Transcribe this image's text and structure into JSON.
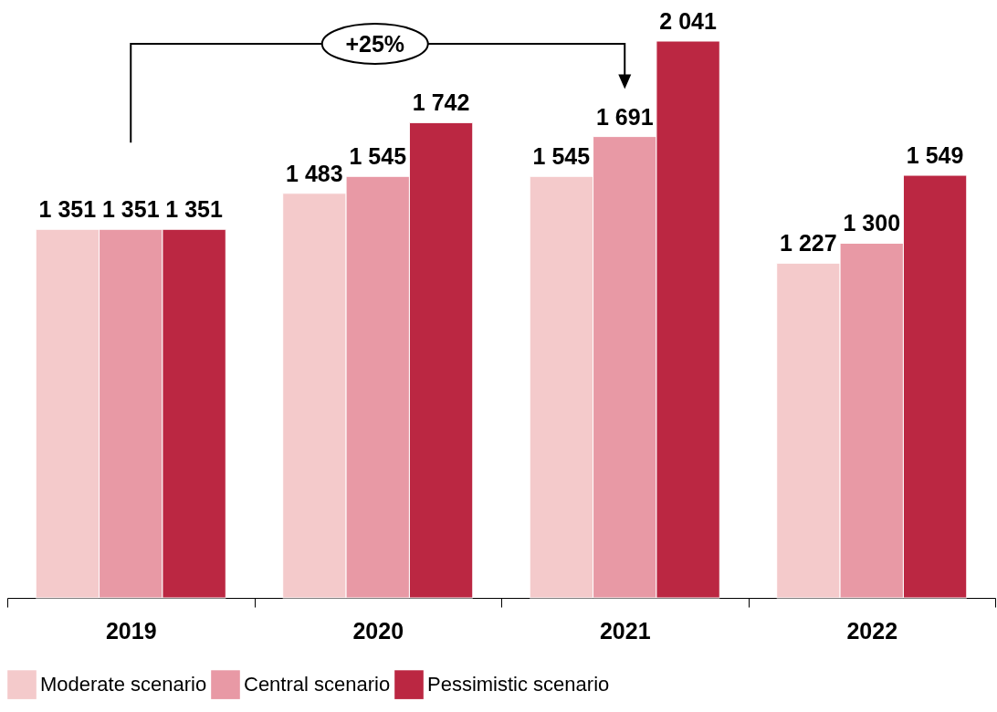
{
  "chart_data": {
    "type": "bar",
    "categories": [
      "2019",
      "2020",
      "2021",
      "2022"
    ],
    "series": [
      {
        "name": "Moderate scenario",
        "color": "#f4cacb",
        "values": [
          1351,
          1483,
          1545,
          1227
        ],
        "value_labels": [
          "1 351",
          "1 483",
          "1 545",
          "1 227"
        ]
      },
      {
        "name": "Central scenario",
        "color": "#e899a5",
        "values": [
          1351,
          1545,
          1691,
          1300
        ],
        "value_labels": [
          "1 351",
          "1 545",
          "1 691",
          "1 300"
        ]
      },
      {
        "name": "Pessimistic scenario",
        "color": "#bb2742",
        "values": [
          1351,
          1742,
          2041,
          1549
        ],
        "value_labels": [
          "1 351",
          "1 742",
          "2 041",
          "1 549"
        ]
      }
    ],
    "annotations": [
      "+25%"
    ],
    "legend": "bottom"
  }
}
